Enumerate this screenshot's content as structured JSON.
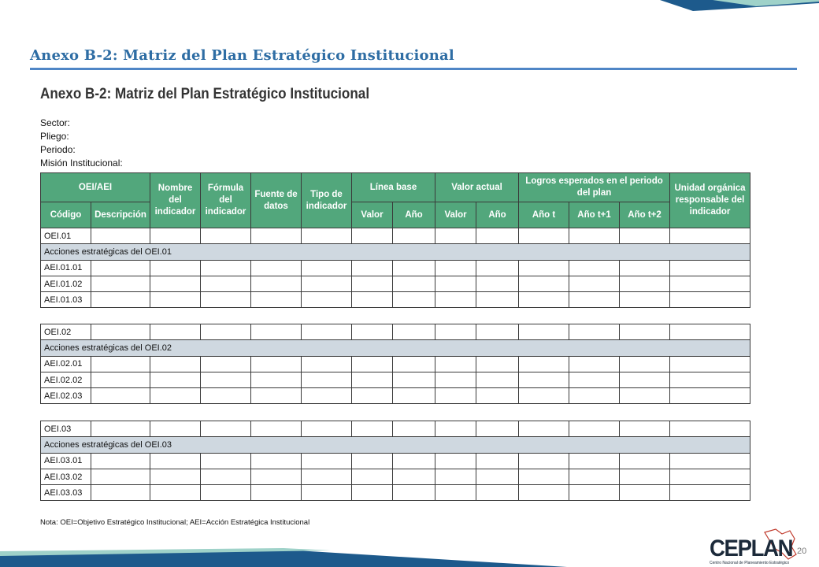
{
  "slide": {
    "title": "Anexo B-2: Matriz del Plan Estratégico Institucional",
    "page_number": "20"
  },
  "document": {
    "title": "Anexo B-2: Matriz del Plan Estratégico Institucional",
    "fields": [
      "Sector:",
      "Pliego:",
      "Periodo:",
      "Misión Institucional:"
    ],
    "header": {
      "oei_aei": "OEI/AEI",
      "codigo": "Código",
      "descripcion": "Descripción",
      "nombre_indicador": "Nombre del indicador",
      "formula_indicador": "Fórmula del indicador",
      "fuente_datos": "Fuente de datos",
      "tipo_indicador": "Tipo de indicador",
      "linea_base": "Línea base",
      "valor_actual": "Valor actual",
      "valor": "Valor",
      "anio": "Año",
      "logros": "Logros esperados en el periodo del plan",
      "anio_t": "Año t",
      "anio_t1": "Año t+1",
      "anio_t2": "Año t+2",
      "unidad_organica": "Unidad orgánica responsable del indicador"
    },
    "blocks": [
      {
        "oei": "OEI.01",
        "group": "Acciones estratégicas del OEI.01",
        "actions": [
          "AEI.01.01",
          "AEI.01.02",
          "AEI.01.03"
        ]
      },
      {
        "oei": "OEI.02",
        "group": "Acciones estratégicas del OEI.02",
        "actions": [
          "AEI.02.01",
          "AEI.02.02",
          "AEI.02.03"
        ]
      },
      {
        "oei": "OEI.03",
        "group": "Acciones estratégicas del OEI.03",
        "actions": [
          "AEI.03.01",
          "AEI.03.02",
          "AEI.03.03"
        ]
      }
    ],
    "note": "Nota: OEI=Objetivo Estratégico Institucional; AEI=Acción Estratégica Institucional"
  },
  "logo": {
    "name": "CEPLAN",
    "subtitle": "Centro Nacional de Planeamiento Estratégico"
  },
  "colors": {
    "header_green": "#52a77c",
    "group_gray": "#cfd8e0",
    "title_blue": "#2e6da4",
    "rule_blue": "#4f86c6"
  }
}
